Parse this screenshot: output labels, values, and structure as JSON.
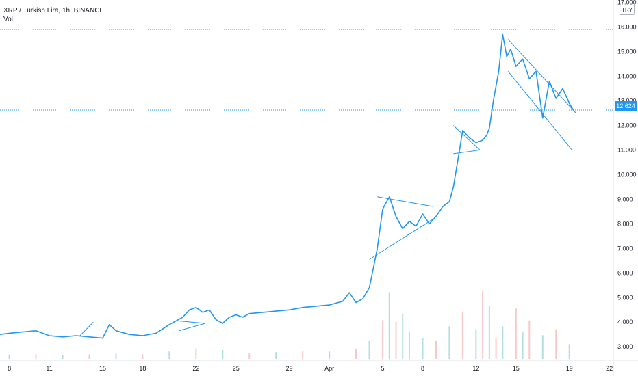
{
  "legend": {
    "title": "XRP / Turkish Lira, 1h, BINANCE",
    "indicator": "Vol"
  },
  "currency_badge": "TRY",
  "last_price_label": "12.624",
  "colors": {
    "line": "#2196f3",
    "vol_up": "#b2dfdb",
    "vol_down": "#f8c8c8",
    "reference_line": "#9598a1",
    "price_line": "#2196f3"
  },
  "chart_data": {
    "type": "line",
    "title": "XRP / Turkish Lira, 1h, BINANCE",
    "xlabel": "",
    "ylabel": "",
    "x_unit": "days from 8 Mar",
    "xlim": [
      -0.7,
      45.3
    ],
    "ylim": [
      2.45,
      17.1
    ],
    "y_ticks": [
      3,
      4,
      5,
      6,
      7,
      8,
      9,
      10,
      11,
      12,
      13,
      14,
      15,
      16,
      17
    ],
    "y_tick_labels": [
      "3.000",
      "4.000",
      "5.000",
      "6.000",
      "7.000",
      "8.000",
      "9.000",
      "10.000",
      "11.000",
      "12.000",
      "13.000",
      "14.000",
      "15.000",
      "16.000",
      "17.000"
    ],
    "x_ticks": [
      {
        "label": "8",
        "x": 0
      },
      {
        "label": "11",
        "x": 3
      },
      {
        "label": "15",
        "x": 7
      },
      {
        "label": "18",
        "x": 10
      },
      {
        "label": "22",
        "x": 14
      },
      {
        "label": "25",
        "x": 17
      },
      {
        "label": "29",
        "x": 21
      },
      {
        "label": "Apr",
        "x": 24
      },
      {
        "label": "5",
        "x": 28
      },
      {
        "label": "8",
        "x": 31
      },
      {
        "label": "12",
        "x": 35
      },
      {
        "label": "15",
        "x": 38
      },
      {
        "label": "19",
        "x": 42
      },
      {
        "label": "22",
        "x": 45
      }
    ],
    "last_price": 12.624,
    "reference_levels": [
      15.9,
      3.27
    ],
    "series": [
      {
        "x": [
          -0.7,
          0,
          1,
          2,
          3,
          4,
          5,
          6,
          7,
          7.5,
          8,
          9,
          10,
          11,
          12,
          13,
          13.5,
          14,
          14.5,
          15,
          15.5,
          16,
          16.5,
          17,
          17.5,
          18,
          19,
          20,
          21,
          22,
          23,
          24,
          25,
          25.5,
          26,
          26.5,
          27,
          27.3,
          27.6,
          28,
          28.5,
          29,
          29.5,
          30,
          30.5,
          31,
          31.5,
          32,
          32.5,
          33,
          33.3,
          33.7,
          34,
          34.5,
          35,
          35.5,
          35.8,
          36,
          36.3,
          36.7,
          37,
          37.3,
          37.6,
          38,
          38.5,
          39,
          39.5,
          40,
          40.5,
          41,
          41.5,
          42,
          42.3
        ],
        "y": [
          3.5,
          3.55,
          3.6,
          3.65,
          3.45,
          3.4,
          3.45,
          3.4,
          3.35,
          3.9,
          3.65,
          3.5,
          3.45,
          3.55,
          3.9,
          4.2,
          4.5,
          4.6,
          4.4,
          4.5,
          4.1,
          3.95,
          4.2,
          4.3,
          4.2,
          4.35,
          4.4,
          4.45,
          4.5,
          4.6,
          4.65,
          4.7,
          4.85,
          5.2,
          4.8,
          4.95,
          5.4,
          6.2,
          7.0,
          8.6,
          9.1,
          8.3,
          7.8,
          8.1,
          7.9,
          8.4,
          8.0,
          8.3,
          8.7,
          8.9,
          9.5,
          10.8,
          11.8,
          11.5,
          11.3,
          11.4,
          11.6,
          11.9,
          13.0,
          14.2,
          15.7,
          14.8,
          15.1,
          14.4,
          14.7,
          13.9,
          14.2,
          12.3,
          13.8,
          13.1,
          13.5,
          12.9,
          12.62
        ]
      }
    ],
    "volume": {
      "x": [
        0,
        2,
        4,
        6,
        8,
        10,
        12,
        14,
        16,
        18,
        20,
        22,
        24,
        26,
        27,
        28,
        28.5,
        29,
        29.5,
        30,
        31,
        32,
        33,
        34,
        35,
        35.5,
        36,
        36.5,
        37,
        38,
        38.5,
        39,
        40,
        41,
        42
      ],
      "y": [
        0.3,
        0.3,
        0.25,
        0.3,
        0.35,
        0.3,
        0.5,
        0.7,
        0.6,
        0.4,
        0.45,
        0.5,
        0.5,
        0.7,
        1.2,
        2.6,
        4.5,
        2.5,
        3.0,
        1.8,
        1.4,
        1.2,
        2.2,
        3.2,
        2.0,
        4.6,
        3.6,
        1.4,
        2.2,
        3.4,
        1.8,
        2.6,
        1.6,
        2.0,
        1.0
      ],
      "ylim": [
        0,
        6
      ]
    },
    "trendlines": [
      {
        "x": [
          5.3,
          6.3
        ],
        "y": [
          3.45,
          4.0
        ]
      },
      {
        "x": [
          12.7,
          14.7
        ],
        "y": [
          4.05,
          3.95
        ]
      },
      {
        "x": [
          12.7,
          14.7
        ],
        "y": [
          3.65,
          3.95
        ]
      },
      {
        "x": [
          27.0,
          31.8
        ],
        "y": [
          6.55,
          8.2
        ]
      },
      {
        "x": [
          27.6,
          31.8
        ],
        "y": [
          9.1,
          8.7
        ]
      },
      {
        "x": [
          33.3,
          35.3
        ],
        "y": [
          12.0,
          11.0
        ]
      },
      {
        "x": [
          33.3,
          35.3
        ],
        "y": [
          10.85,
          11.0
        ]
      },
      {
        "x": [
          37.4,
          42.5
        ],
        "y": [
          15.5,
          12.5
        ]
      },
      {
        "x": [
          37.4,
          42.2
        ],
        "y": [
          14.2,
          11.0
        ]
      }
    ]
  }
}
